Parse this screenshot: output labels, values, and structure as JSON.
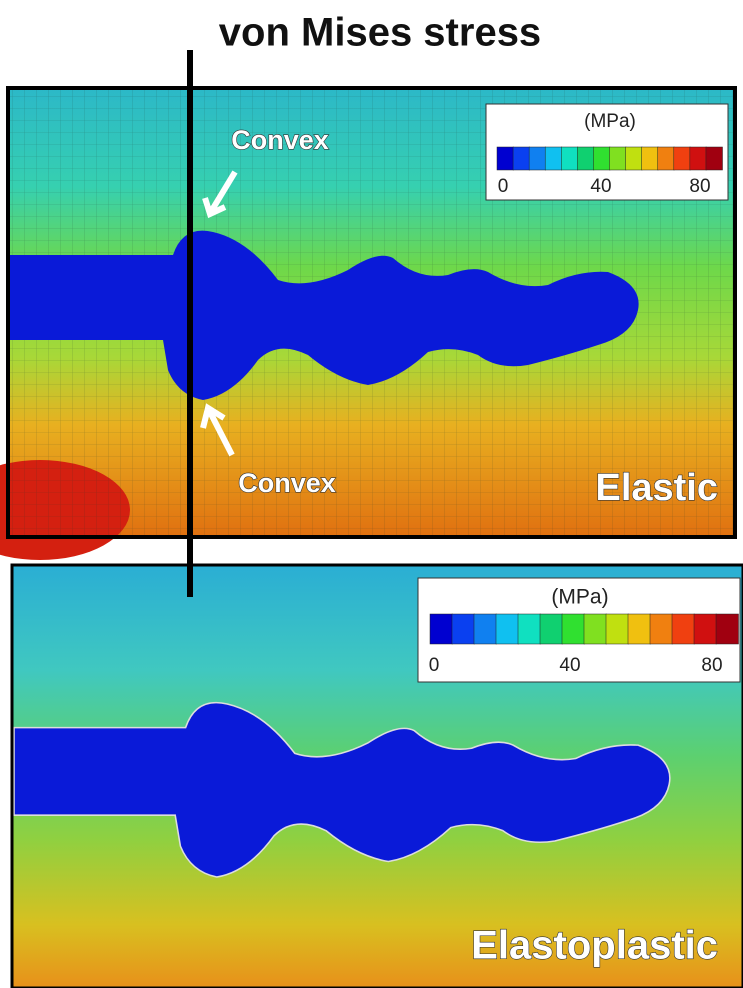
{
  "title": "von Mises stress",
  "panels": [
    {
      "label": "Elastic",
      "annotations": [
        "Convex",
        "Convex"
      ],
      "colorbar": {
        "unit": "(MPa)",
        "ticks": [
          0,
          40,
          80
        ]
      }
    },
    {
      "label": "Elastoplastic",
      "colorbar": {
        "unit": "(MPa)",
        "ticks": [
          0,
          40,
          80
        ]
      }
    }
  ]
}
